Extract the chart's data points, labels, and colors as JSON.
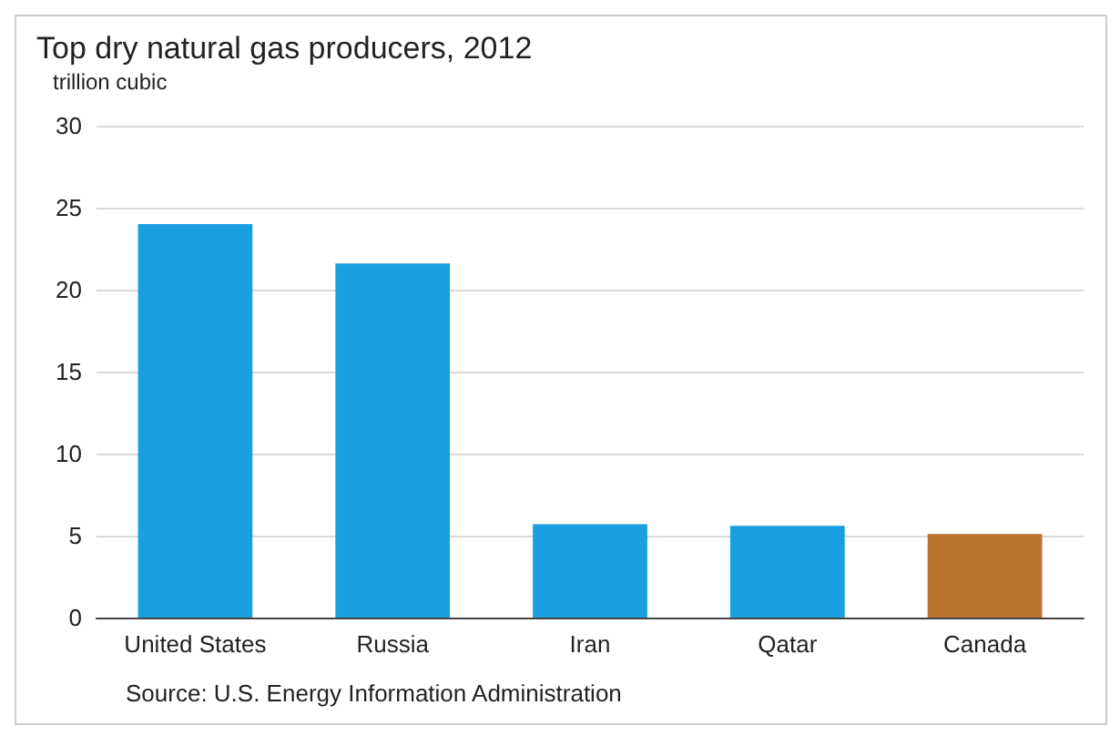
{
  "chart_data": {
    "type": "bar",
    "title": "Top dry natural gas producers, 2012",
    "ylabel": "trillion cubic",
    "categories": [
      "United States",
      "Russia",
      "Iran",
      "Qatar",
      "Canada"
    ],
    "values": [
      24,
      21.6,
      5.7,
      5.6,
      5.1
    ],
    "colors": [
      "#1a9fe0",
      "#1a9fe0",
      "#1a9fe0",
      "#1a9fe0",
      "#b8732e"
    ],
    "ylim": [
      0,
      30
    ],
    "yticks": [
      0,
      5,
      10,
      15,
      20,
      25,
      30
    ],
    "grid": "y",
    "annotations": [
      "Source: U.S. Energy Information Administration"
    ]
  }
}
